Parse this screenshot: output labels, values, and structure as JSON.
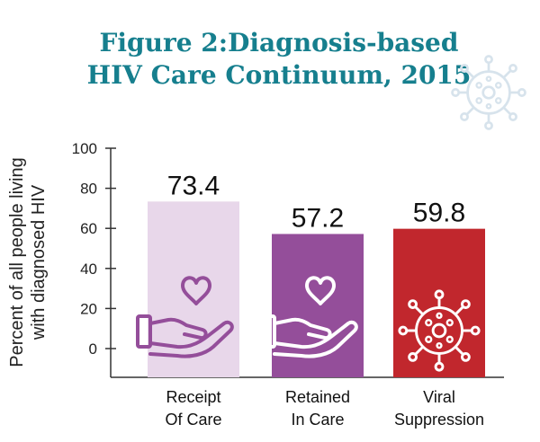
{
  "chart_data": {
    "type": "bar",
    "title_lines": [
      "Figure 2:Diagnosis-based",
      "HIV Care Continuum, 2015"
    ],
    "ylabel_lines": [
      "Percent of all people living",
      "with diagnosed HIV"
    ],
    "xlabel": "",
    "ylim": [
      0,
      100
    ],
    "yticks": [
      0,
      20,
      40,
      60,
      80,
      100
    ],
    "categories": [
      [
        "Receipt",
        "Of Care"
      ],
      [
        "Retained",
        "In Care"
      ],
      [
        "Viral",
        "Suppression"
      ]
    ],
    "values": [
      73.4,
      57.2,
      59.8
    ],
    "value_labels": [
      "73.4",
      "57.2",
      "59.8"
    ],
    "bar_colors": [
      "#e8d7ea",
      "#944e9a",
      "#c1272d"
    ],
    "bar_icons": [
      "heart-hand-icon",
      "heart-hand-icon",
      "virus-icon"
    ],
    "grid": false
  },
  "colors": {
    "title": "#167f8e",
    "axis": "#333333",
    "icon_dark": "#944e9a",
    "icon_light": "#ffffff",
    "decor_virus": "#d7e3ec"
  }
}
